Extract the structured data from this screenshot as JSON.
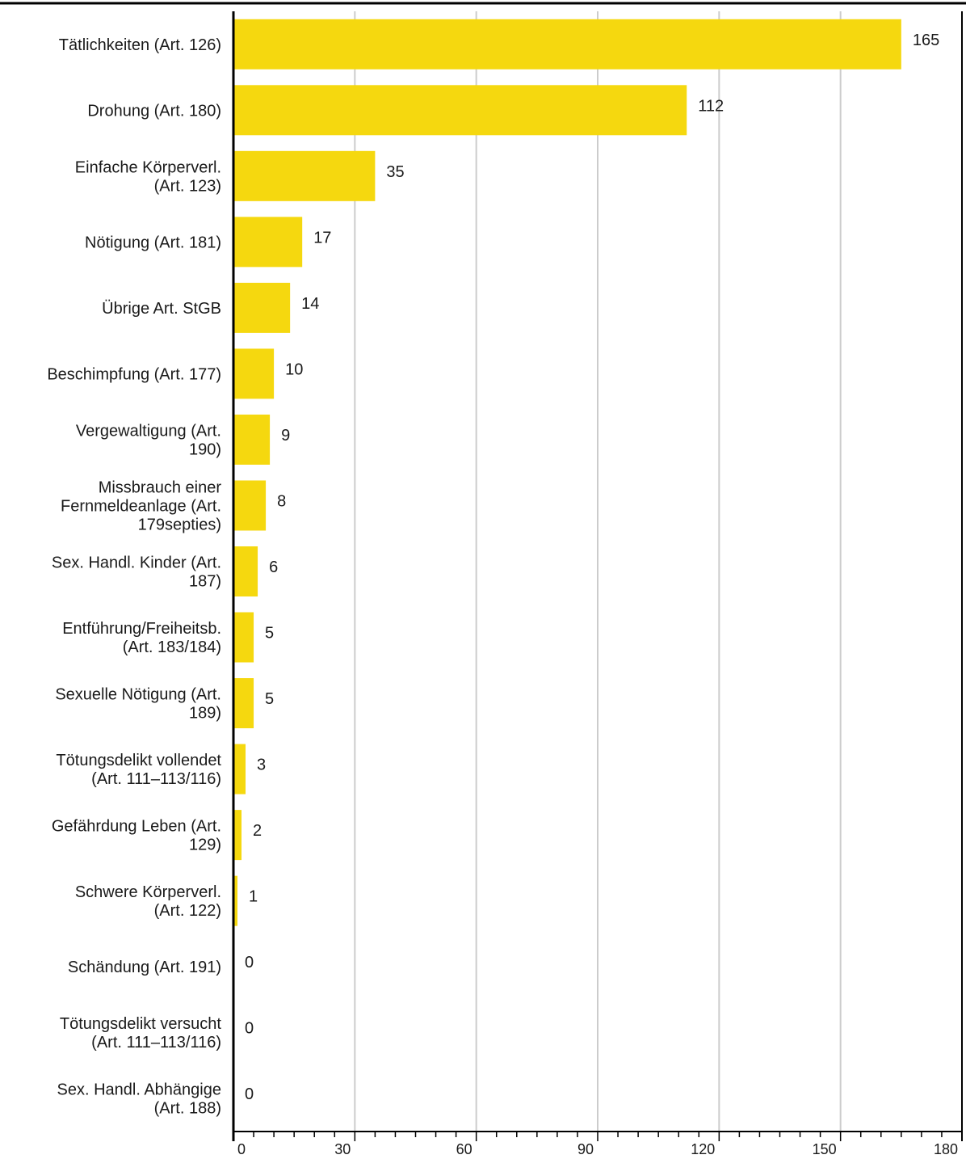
{
  "chart_data": {
    "type": "bar",
    "orientation": "horizontal",
    "title": "",
    "xlabel": "",
    "ylabel": "",
    "xlim": [
      0,
      180
    ],
    "xticks": [
      0,
      30,
      60,
      90,
      120,
      150,
      180
    ],
    "grid": true,
    "bar_color": "#f5d80f",
    "grid_color": "#cccccc",
    "categories": [
      [
        "Tätlichkeiten (Art. 126)"
      ],
      [
        "Drohung (Art. 180)"
      ],
      [
        "Einfache Körperverl.",
        "(Art. 123)"
      ],
      [
        "Nötigung (Art. 181)"
      ],
      [
        "Übrige Art. StGB"
      ],
      [
        "Beschimpfung (Art. 177)"
      ],
      [
        "Vergewaltigung (Art.",
        "190)"
      ],
      [
        "Missbrauch einer",
        "Fernmeldeanlage (Art.",
        "179septies)"
      ],
      [
        "Sex. Handl. Kinder (Art.",
        "187)"
      ],
      [
        "Entführung/Freiheitsb.",
        "(Art. 183/184)"
      ],
      [
        "Sexuelle Nötigung (Art.",
        "189)"
      ],
      [
        "Tötungsdelikt vollendet",
        "(Art. 111–113/116)"
      ],
      [
        "Gefährdung Leben (Art.",
        "129)"
      ],
      [
        "Schwere Körperverl.",
        "(Art. 122)"
      ],
      [
        "Schändung (Art. 191)"
      ],
      [
        "Tötungsdelikt versucht",
        "(Art. 111–113/116)"
      ],
      [
        "Sex. Handl. Abhängige",
        "(Art. 188)"
      ]
    ],
    "values": [
      165,
      112,
      35,
      17,
      14,
      10,
      9,
      8,
      6,
      5,
      5,
      3,
      2,
      1,
      0,
      0,
      0
    ]
  }
}
